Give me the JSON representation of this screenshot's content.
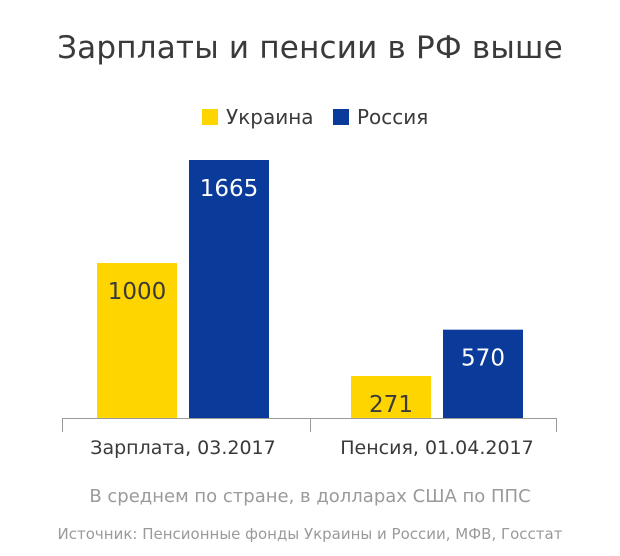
{
  "chart_data": {
    "type": "bar",
    "title": "Зарплаты и пенсии в РФ выше",
    "subtitle": "В среднем по стране, в долларах США по ППС",
    "source": "Источник: Пенсионные фонды Украины и России, МФВ, Госстат",
    "categories": [
      "Зарплата, 03.2017",
      "Пенсия, 01.04.2017"
    ],
    "series": [
      {
        "name": "Украина",
        "color": "#ffd500",
        "label_color": "#3a3a3a",
        "values": [
          1000,
          271
        ]
      },
      {
        "name": "Россия",
        "color": "#0a3a9a",
        "label_color": "#ffffff",
        "values": [
          1665,
          570
        ]
      }
    ],
    "legend_position": "top-center",
    "grid": false,
    "ylim": [
      0,
      1665
    ]
  }
}
